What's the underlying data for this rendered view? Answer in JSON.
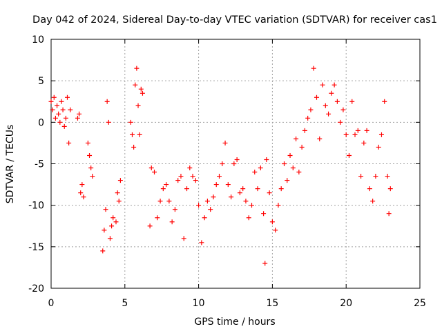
{
  "chart_data": {
    "type": "scatter",
    "title": "Day 042 of 2024, Sidereal Day-to-day VTEC variation (SDTVAR) for receiver cas1",
    "xlabel": "GPS time / hours",
    "ylabel": "SDTVAR / TECUs",
    "xlim": [
      0,
      25
    ],
    "ylim": [
      -20,
      10
    ],
    "xticks": [
      "0",
      "5",
      "10",
      "15",
      "20",
      "25"
    ],
    "yticks": [
      "-20",
      "-15",
      "-10",
      "-5",
      "0",
      "5",
      "10"
    ],
    "xtick_values": [
      0,
      5,
      10,
      15,
      20,
      25
    ],
    "ytick_values": [
      -20,
      -15,
      -10,
      -5,
      0,
      5,
      10
    ],
    "grid": true,
    "marker": "+",
    "color": "#ff0000",
    "series": [
      {
        "name": "SDTVAR",
        "x": [
          0.0,
          0.1,
          0.2,
          0.3,
          0.4,
          0.5,
          0.6,
          0.7,
          0.8,
          0.9,
          1.0,
          1.1,
          1.2,
          1.3,
          1.8,
          1.9,
          2.0,
          2.1,
          2.2,
          2.5,
          2.6,
          2.7,
          2.8,
          3.5,
          3.6,
          3.7,
          3.8,
          3.9,
          4.0,
          4.1,
          4.2,
          4.4,
          4.5,
          4.6,
          4.7,
          5.4,
          5.5,
          5.6,
          5.7,
          5.8,
          5.9,
          6.0,
          6.1,
          6.2,
          6.7,
          6.8,
          7.0,
          7.2,
          7.4,
          7.6,
          7.8,
          8.0,
          8.2,
          8.4,
          8.6,
          8.8,
          9.0,
          9.2,
          9.4,
          9.6,
          9.8,
          10.0,
          10.2,
          10.4,
          10.6,
          10.8,
          11.0,
          11.2,
          11.4,
          11.6,
          11.8,
          12.0,
          12.2,
          12.4,
          12.6,
          12.8,
          13.0,
          13.2,
          13.4,
          13.6,
          13.8,
          14.0,
          14.2,
          14.4,
          14.5,
          14.6,
          14.8,
          15.0,
          15.2,
          15.4,
          15.6,
          15.8,
          16.0,
          16.2,
          16.4,
          16.6,
          16.8,
          17.0,
          17.2,
          17.4,
          17.6,
          17.8,
          18.0,
          18.2,
          18.4,
          18.6,
          18.8,
          19.0,
          19.2,
          19.4,
          19.6,
          19.8,
          20.0,
          20.2,
          20.4,
          20.6,
          20.8,
          21.0,
          21.2,
          21.4,
          21.6,
          21.8,
          22.0,
          22.2,
          22.4,
          22.6,
          22.8,
          22.9,
          23.0
        ],
        "y": [
          2.5,
          1.5,
          3.0,
          0.5,
          2.0,
          1.0,
          0.0,
          2.5,
          1.5,
          -0.5,
          0.5,
          3.0,
          -2.5,
          1.5,
          0.5,
          1.0,
          -8.5,
          -7.5,
          -9.0,
          -2.5,
          -4.0,
          -5.5,
          -6.5,
          -15.5,
          -13.0,
          -10.5,
          2.5,
          0.0,
          -14.0,
          -12.5,
          -11.5,
          -12.0,
          -8.5,
          -9.5,
          -7.0,
          0.0,
          -1.5,
          -3.0,
          4.5,
          6.5,
          2.0,
          -1.5,
          4.0,
          3.5,
          -12.5,
          -5.5,
          -6.0,
          -11.5,
          -9.5,
          -8.0,
          -7.5,
          -9.5,
          -12.0,
          -10.5,
          -7.0,
          -6.5,
          -14.0,
          -8.0,
          -5.5,
          -6.5,
          -7.0,
          -10.0,
          -14.5,
          -11.5,
          -9.5,
          -10.5,
          -9.0,
          -7.5,
          -6.5,
          -5.0,
          -2.5,
          -7.5,
          -9.0,
          -5.0,
          -4.5,
          -8.5,
          -8.0,
          -9.5,
          -11.5,
          -10.0,
          -6.0,
          -8.0,
          -5.5,
          -11.0,
          -17.0,
          -4.5,
          -8.5,
          -12.0,
          -13.0,
          -10.0,
          -8.0,
          -5.0,
          -7.0,
          -4.0,
          -5.5,
          -2.0,
          -6.0,
          -3.0,
          -1.0,
          0.5,
          1.5,
          6.5,
          3.0,
          -2.0,
          4.5,
          2.0,
          1.0,
          3.5,
          4.5,
          2.5,
          0.0,
          1.5,
          -1.5,
          -4.0,
          2.5,
          -1.5,
          -1.0,
          -6.5,
          -2.5,
          -1.0,
          -8.0,
          -9.5,
          -6.5,
          -3.0,
          -1.5,
          2.5,
          -6.5,
          -11.0,
          -8.0
        ]
      }
    ]
  }
}
